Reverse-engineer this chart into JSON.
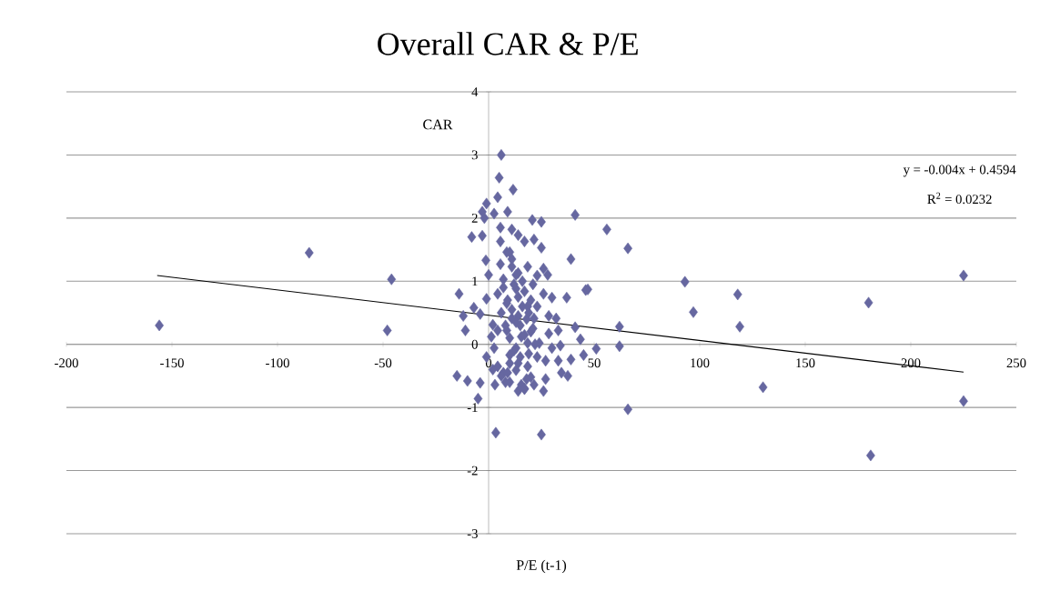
{
  "chart_data": {
    "type": "scatter",
    "title": "Overall CAR & P/E",
    "xlabel": "P/E (t-1)",
    "ylabel": "CAR",
    "xlim": [
      -200,
      250
    ],
    "ylim": [
      -3,
      4
    ],
    "xticks": [
      -200,
      -150,
      -100,
      -50,
      0,
      50,
      100,
      150,
      200,
      250
    ],
    "yticks": [
      -3,
      -2,
      -1,
      0,
      1,
      2,
      3,
      4
    ],
    "grid": "y",
    "marker": "diamond",
    "annotations": [
      "y = -0.004x + 0.4594",
      "R$^{2}$ = 0.0232"
    ],
    "series": [
      {
        "color": "#6667a0",
        "x": [
          -156,
          -85,
          -46,
          -48,
          225,
          225,
          180,
          181,
          130,
          118,
          119,
          93,
          97,
          66,
          56,
          66,
          62,
          62,
          51,
          47,
          41,
          39,
          37,
          3.4,
          25,
          6,
          5,
          11.6,
          -2,
          -1,
          -8,
          -3,
          -14,
          -12,
          -11,
          -15,
          -10,
          -5,
          -4,
          3,
          -1.3,
          0,
          -1,
          -7,
          -4,
          46,
          41,
          43.5,
          45,
          39,
          37.5,
          25,
          20.7,
          25,
          21.5,
          28,
          26,
          9,
          -3,
          2.6,
          4.3,
          14,
          17,
          11,
          5.6,
          5.6,
          8.6,
          18.5,
          23,
          30,
          26,
          32,
          33,
          34,
          33,
          34.5,
          26,
          17,
          14,
          21.5,
          18.5,
          27,
          30,
          28.5,
          28.5,
          21.5,
          10,
          7,
          4.3,
          2,
          2.6,
          8.6,
          13,
          7,
          11,
          5.6,
          10,
          14,
          17,
          14,
          15.5,
          13,
          18.5,
          24,
          10,
          23,
          8.6,
          13,
          11,
          18.5,
          4.3,
          1.3,
          4.3,
          23,
          27,
          20,
          15.5,
          2,
          -1,
          6,
          8,
          10,
          12,
          14,
          16,
          18,
          20,
          22,
          7,
          9,
          11,
          13,
          15,
          17,
          19,
          21,
          6,
          8,
          10,
          12,
          14,
          16,
          18,
          20,
          9,
          11,
          13,
          15,
          17,
          19,
          21
        ],
        "values": [
          0.3,
          1.45,
          1.03,
          0.22,
          1.09,
          -0.9,
          0.66,
          -1.76,
          -0.68,
          0.79,
          0.28,
          0.99,
          0.51,
          1.52,
          1.82,
          -1.03,
          0.28,
          -0.03,
          -0.07,
          0.87,
          2.05,
          1.35,
          0.74,
          -1.4,
          -1.43,
          3.0,
          2.64,
          2.45,
          2.0,
          2.23,
          1.7,
          1.72,
          0.8,
          0.45,
          0.22,
          -0.5,
          -0.58,
          -0.86,
          -0.61,
          -0.64,
          1.33,
          1.1,
          0.72,
          0.58,
          0.48,
          0.86,
          0.27,
          0.08,
          -0.17,
          -0.24,
          -0.5,
          1.94,
          1.97,
          1.53,
          1.66,
          1.1,
          1.2,
          2.1,
          2.1,
          2.07,
          2.33,
          1.73,
          1.63,
          1.82,
          1.85,
          1.63,
          1.46,
          1.23,
          1.09,
          0.74,
          0.8,
          0.41,
          0.22,
          -0.02,
          -0.26,
          -0.45,
          -0.74,
          -0.71,
          -0.74,
          -0.64,
          -0.35,
          -0.26,
          -0.06,
          0.17,
          0.45,
          0.41,
          -0.17,
          -0.45,
          0.22,
          0.31,
          -0.06,
          0.65,
          0.88,
          1.03,
          1.23,
          1.27,
          1.46,
          1.13,
          0.84,
          0.45,
          0.12,
          -0.41,
          0.02,
          0.02,
          -0.6,
          0.6,
          0.22,
          -0.06,
          0.41,
          0.6,
          0.8,
          0.12,
          -0.35,
          -0.2,
          -0.55,
          -0.52,
          -0.64,
          -0.4,
          -0.2,
          0.5,
          0.3,
          0.1,
          -0.1,
          -0.3,
          0.6,
          0.4,
          0.2,
          0.0,
          0.9,
          0.7,
          0.55,
          0.35,
          -0.2,
          0.15,
          -0.15,
          0.25,
          -0.5,
          -0.6,
          -0.3,
          0.95,
          0.75,
          1.0,
          -0.55,
          0.7,
          -0.45,
          1.35,
          1.1,
          0.3,
          -0.7,
          0.5,
          0.95
        ]
      },
      {
        "type": "line",
        "color": "#000000",
        "marker": "none",
        "x": [
          -157,
          225
        ],
        "values": [
          1.09,
          -0.44
        ]
      }
    ]
  }
}
